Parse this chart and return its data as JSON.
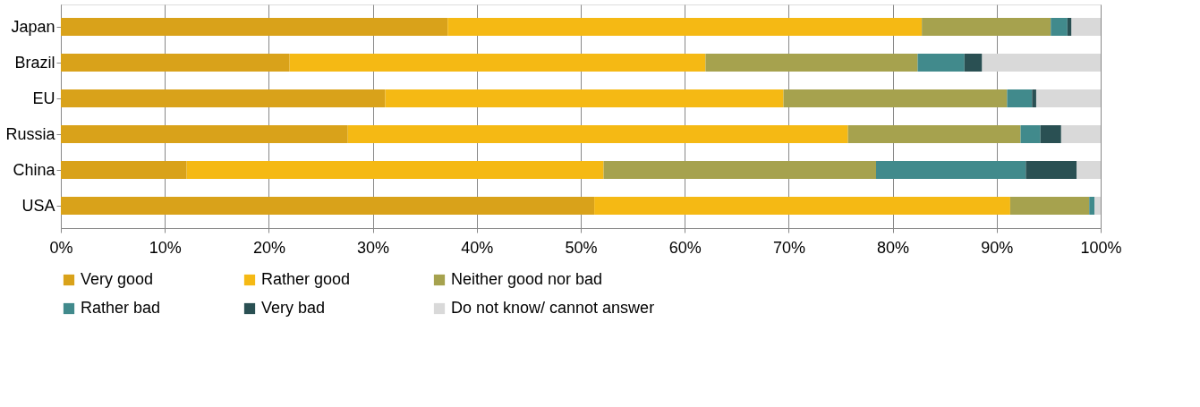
{
  "chart_data": {
    "type": "bar",
    "orientation": "horizontal",
    "stacked": true,
    "categories": [
      "Japan",
      "Brazil",
      "EU",
      "Russia",
      "China",
      "USA"
    ],
    "series": [
      {
        "name": "Very good",
        "color": "#d9a21a",
        "values": [
          37.2,
          22.0,
          31.2,
          27.6,
          12.1,
          51.3
        ]
      },
      {
        "name": "Rather good",
        "color": "#f5b914",
        "values": [
          45.6,
          40.0,
          38.3,
          48.1,
          40.1,
          40.0
        ]
      },
      {
        "name": "Neither good nor bad",
        "color": "#a6a24e",
        "values": [
          12.4,
          20.4,
          21.5,
          16.6,
          26.2,
          7.6
        ]
      },
      {
        "name": "Rather bad",
        "color": "#418a8c",
        "values": [
          1.6,
          4.5,
          2.4,
          1.9,
          14.4,
          0.5
        ]
      },
      {
        "name": "Very bad",
        "color": "#2a5053",
        "values": [
          0.4,
          1.7,
          0.4,
          2.0,
          4.9,
          0
        ]
      },
      {
        "name": "Do not know/ cannot answer",
        "color": "#d9d9d9",
        "values": [
          2.8,
          11.4,
          6.2,
          3.8,
          2.3,
          0.6
        ]
      }
    ],
    "xlim": [
      0,
      100
    ],
    "xticks": [
      {
        "value": 0,
        "label": "0%"
      },
      {
        "value": 10,
        "label": "10%"
      },
      {
        "value": 20,
        "label": "20%"
      },
      {
        "value": 30,
        "label": "30%"
      },
      {
        "value": 40,
        "label": "40%"
      },
      {
        "value": 50,
        "label": "50%"
      },
      {
        "value": 60,
        "label": "60%"
      },
      {
        "value": 70,
        "label": "70%"
      },
      {
        "value": 80,
        "label": "80%"
      },
      {
        "value": 90,
        "label": "90%"
      },
      {
        "value": 100,
        "label": "100%"
      }
    ],
    "grid": "x",
    "legend": "bottom"
  }
}
